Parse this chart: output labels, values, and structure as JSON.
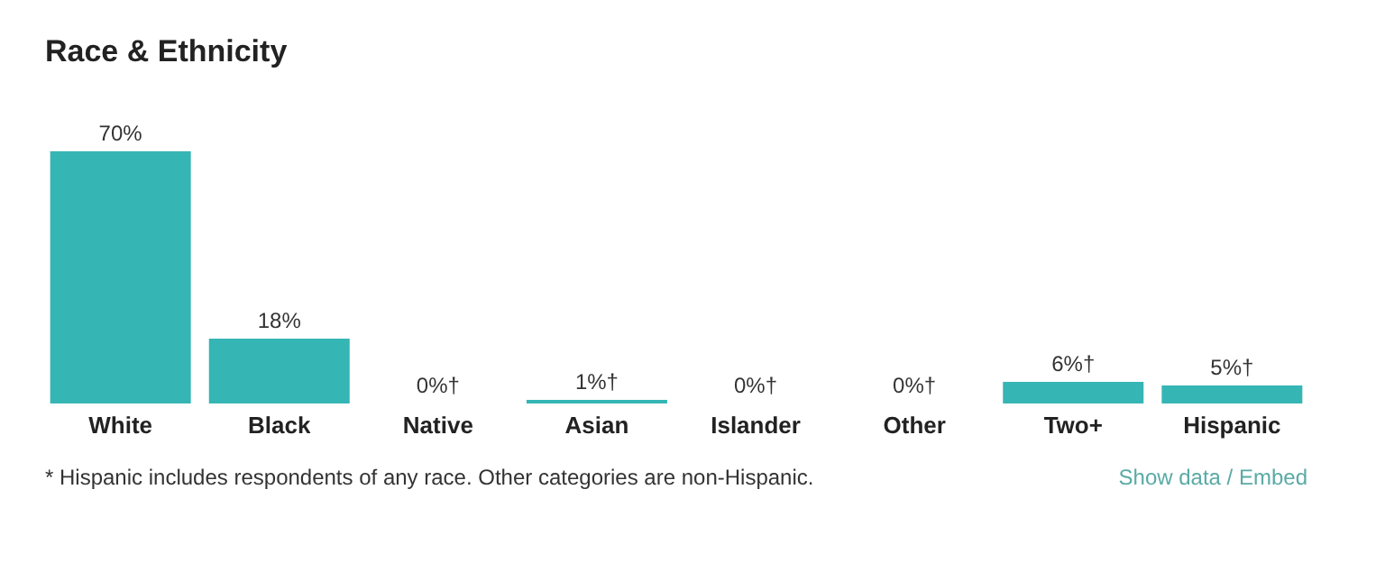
{
  "chart_data": {
    "type": "bar",
    "title": "Race & Ethnicity",
    "categories": [
      "White",
      "Black",
      "Native",
      "Asian",
      "Islander",
      "Other",
      "Two+",
      "Hispanic"
    ],
    "values": [
      70,
      18,
      0,
      1,
      0,
      0,
      6,
      5
    ],
    "value_labels": [
      "70%",
      "18%",
      "0%†",
      "1%†",
      "0%†",
      "0%†",
      "6%†",
      "5%†"
    ],
    "color": "#36b5b5",
    "annotations": [
      "* Hispanic includes respondents of any race. Other categories are non-Hispanic.",
      "Show data / Embed"
    ]
  }
}
